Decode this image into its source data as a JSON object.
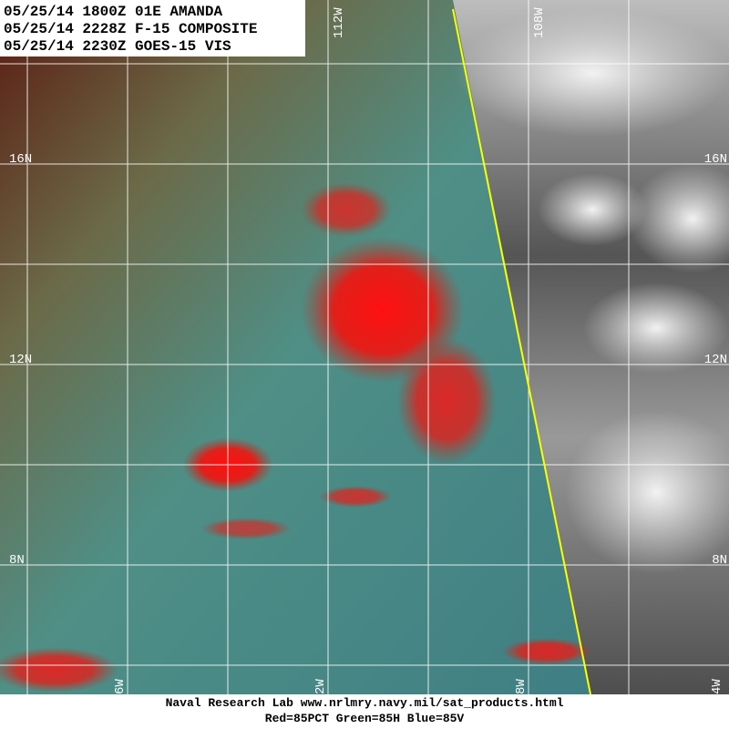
{
  "header": {
    "lines": [
      "05/25/14 1800Z 01E AMANDA",
      "05/25/14 2228Z F-15 COMPOSITE",
      "05/25/14 2230Z GOES-15 VIS"
    ]
  },
  "grid_labels": {
    "lat_left": [
      "16N",
      "12N",
      "8N"
    ],
    "lat_right": [
      "16N",
      "12N",
      "8N"
    ],
    "lon_top": [
      "112W",
      "108W"
    ],
    "lon_bottom": [
      "6W",
      "2W",
      "8W",
      "4W"
    ]
  },
  "footer": {
    "lines": [
      "Naval Research Lab  www.nrlmry.navy.mil/sat_products.html",
      "Red=85PCT  Green=85H  Blue=85V"
    ]
  }
}
